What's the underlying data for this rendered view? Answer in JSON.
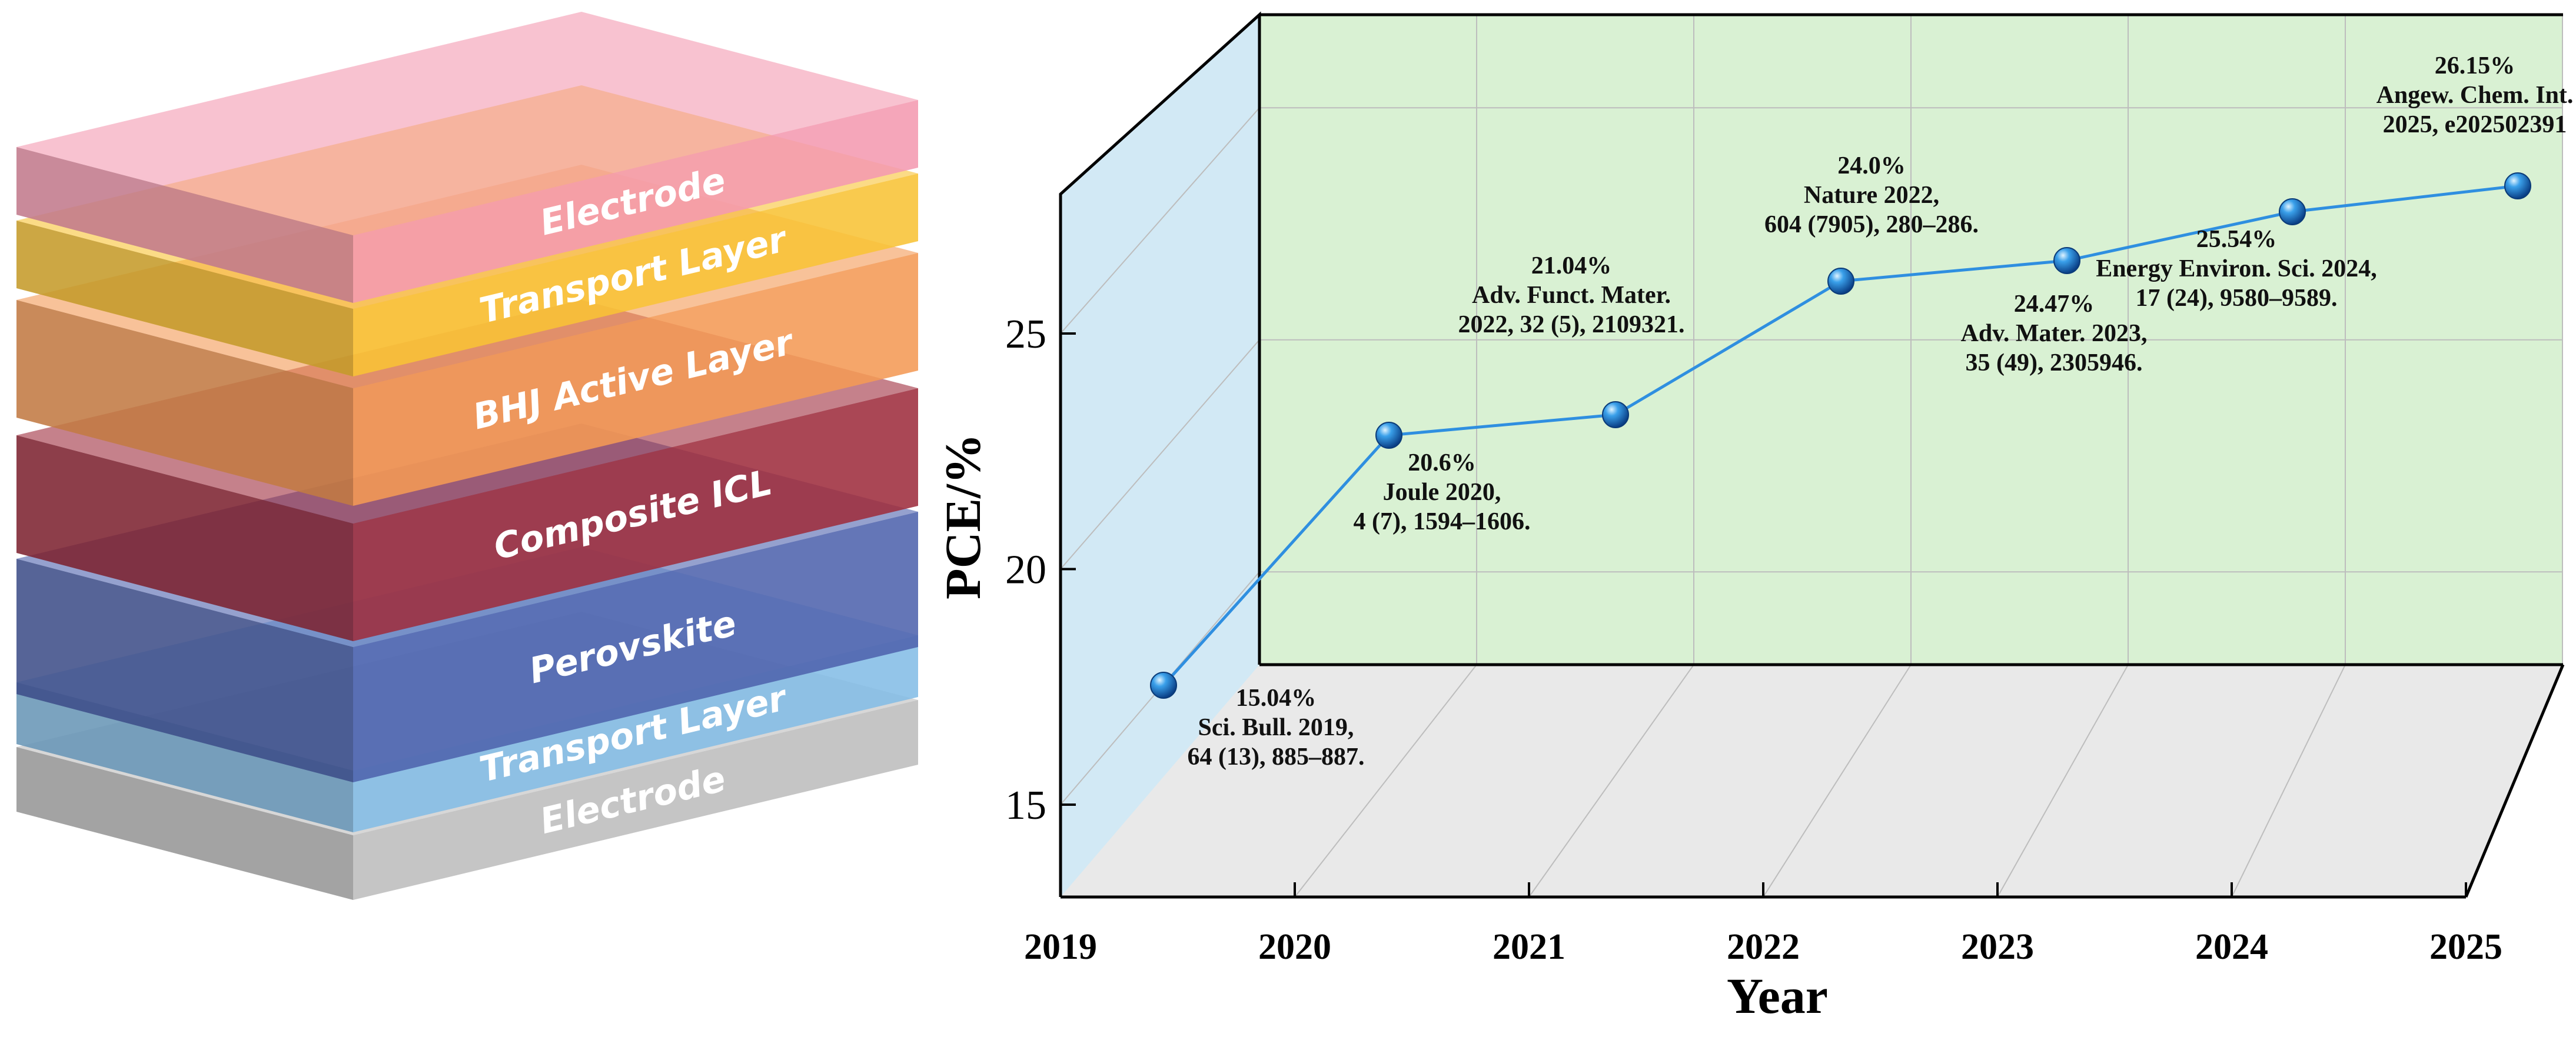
{
  "stack": {
    "layers": [
      {
        "label": "Electrode",
        "color": "#f49ab0"
      },
      {
        "label": "Transport Layer",
        "color": "#f8c336"
      },
      {
        "label": "BHJ Active Layer",
        "color": "#f49a55"
      },
      {
        "label": "Composite ICL",
        "color": "#9e2d3e"
      },
      {
        "label": "Perovskite",
        "color": "#4f63ad"
      },
      {
        "label": "Transport Layer",
        "color": "#84bde6"
      },
      {
        "label": "Electrode",
        "color": "#bdbdbd"
      }
    ]
  },
  "chart_data": {
    "type": "line",
    "title": "",
    "xlabel": "Year",
    "ylabel": "PCE/%",
    "x_ticks": [
      "2019",
      "2020",
      "2021",
      "2022",
      "2023",
      "2024",
      "2025"
    ],
    "y_ticks": [
      "15",
      "20",
      "25"
    ],
    "ylim": [
      13,
      28
    ],
    "grid": true,
    "line_color": "#2f8fe0",
    "back_wall_color": "#d9f1d3",
    "side_wall_color": "#d2e9f5",
    "floor_color": "#e9e9e9",
    "points": [
      {
        "x": 2019.0,
        "y": 15.04,
        "value_label": "15.04%",
        "ref1": "Sci. Bull. 2019,",
        "ref2": "64 (13), 885–887."
      },
      {
        "x": 2020.0,
        "y": 20.6,
        "value_label": "20.6%",
        "ref1": "Joule 2020,",
        "ref2": "4 (7), 1594–1606."
      },
      {
        "x": 2021.0,
        "y": 21.04,
        "value_label": "21.04%",
        "ref1": "Adv. Funct. Mater.",
        "ref2": "2022, 32 (5), 2109321."
      },
      {
        "x": 2022.0,
        "y": 24.0,
        "value_label": "24.0%",
        "ref1": "Nature 2022,",
        "ref2": "604 (7905), 280–286."
      },
      {
        "x": 2023.0,
        "y": 24.47,
        "value_label": "24.47%",
        "ref1": "Adv. Mater. 2023,",
        "ref2": "35 (49), 2305946."
      },
      {
        "x": 2024.0,
        "y": 25.54,
        "value_label": "25.54%",
        "ref1": "Energy Environ. Sci. 2024,",
        "ref2": "17 (24), 9580–9589."
      },
      {
        "x": 2025.0,
        "y": 26.15,
        "value_label": "26.15%",
        "ref1": "Angew. Chem. Int.",
        "ref2": "2025, e202502391"
      }
    ]
  }
}
